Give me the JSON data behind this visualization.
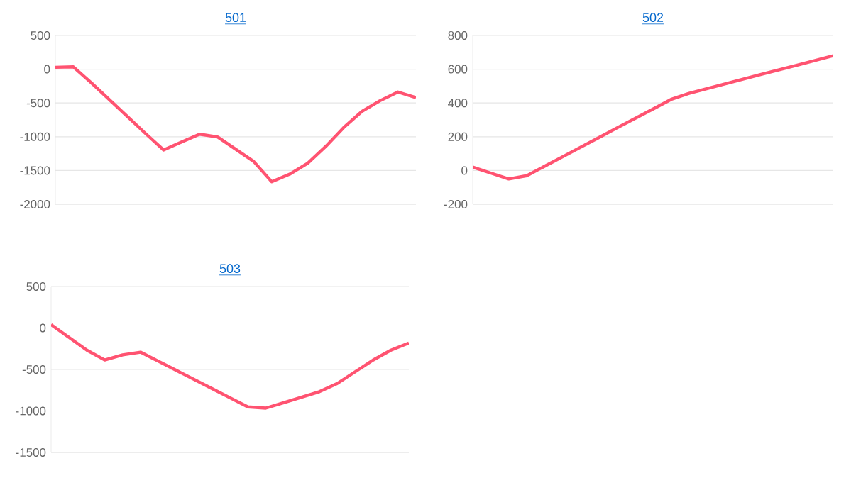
{
  "chart_data": [
    {
      "type": "line",
      "title": "501",
      "categories": [
        null,
        null,
        null,
        null,
        null,
        null,
        null,
        null,
        null,
        null,
        null,
        null,
        null,
        null,
        null,
        null,
        null,
        null,
        null,
        null,
        null
      ],
      "series": [
        {
          "color": "#ff5371",
          "values": [
            28,
            35,
            -202,
            -452,
            -702,
            -952,
            -1196,
            -1078,
            -963,
            -1004,
            -1185,
            -1366,
            -1666,
            -1554,
            -1393,
            -1143,
            -862,
            -626,
            -468,
            -338,
            -420
          ]
        }
      ],
      "ylim": [
        -2000,
        500
      ],
      "yticks": [
        -2000,
        -1500,
        -1000,
        -500,
        0,
        500
      ],
      "grid": "y"
    },
    {
      "type": "line",
      "title": "502",
      "categories": [
        null,
        null,
        null,
        null,
        null,
        null,
        null,
        null,
        null,
        null,
        null,
        null,
        null,
        null,
        null,
        null,
        null,
        null,
        null,
        null,
        null
      ],
      "series": [
        {
          "color": "#ff5371",
          "values": [
            20,
            -15,
            -50,
            -31,
            26,
            82,
            139,
            195,
            252,
            308,
            364,
            421,
            457,
            485,
            513,
            541,
            569,
            597,
            624,
            652,
            680
          ]
        }
      ],
      "ylim": [
        -200,
        800
      ],
      "yticks": [
        -200,
        0,
        200,
        400,
        600,
        800
      ],
      "grid": "y"
    },
    {
      "type": "line",
      "title": "503",
      "categories": [
        null,
        null,
        null,
        null,
        null,
        null,
        null,
        null,
        null,
        null,
        null,
        null,
        null,
        null,
        null,
        null,
        null,
        null,
        null,
        null,
        null
      ],
      "series": [
        {
          "color": "#ff5371",
          "values": [
            40,
            -113,
            -267,
            -386,
            -324,
            -291,
            -401,
            -511,
            -621,
            -731,
            -841,
            -951,
            -966,
            -900,
            -834,
            -768,
            -669,
            -528,
            -387,
            -267,
            -181
          ]
        }
      ],
      "ylim": [
        -1500,
        500
      ],
      "yticks": [
        -1500,
        -1000,
        -500,
        0,
        500
      ],
      "grid": "y"
    }
  ]
}
